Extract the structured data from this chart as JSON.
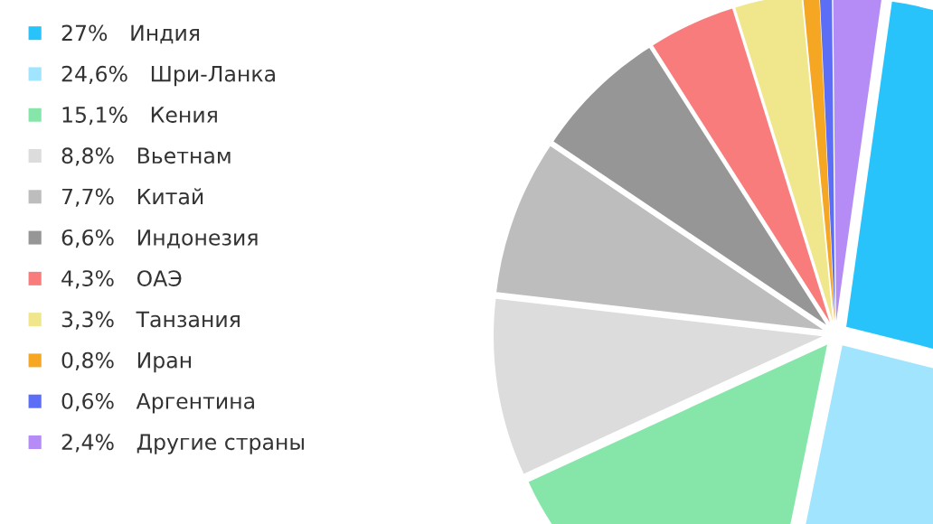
{
  "chart_data": {
    "type": "pie",
    "categories": [
      "Индия",
      "Шри-Ланка",
      "Кения",
      "Вьетнам",
      "Китай",
      "Индонезия",
      "ОАЭ",
      "Танзания",
      "Иран",
      "Аргентина",
      "Другие страны"
    ],
    "values": [
      27,
      24.6,
      15.1,
      8.8,
      7.7,
      6.6,
      4.3,
      3.3,
      0.8,
      0.6,
      2.4
    ],
    "value_labels": [
      "27%",
      "24,6%",
      "15,1%",
      "8,8%",
      "7,7%",
      "6,6%",
      "4,3%",
      "3,3%",
      "0,8%",
      "0,6%",
      "2,4%"
    ],
    "colors": [
      "#29c3fc",
      "#a0e4fd",
      "#86e6a9",
      "#dcdcdc",
      "#bdbdbd",
      "#969696",
      "#f87c7c",
      "#f0e68c",
      "#f5a623",
      "#5b6ef5",
      "#b58cf5"
    ],
    "legend": "left"
  }
}
